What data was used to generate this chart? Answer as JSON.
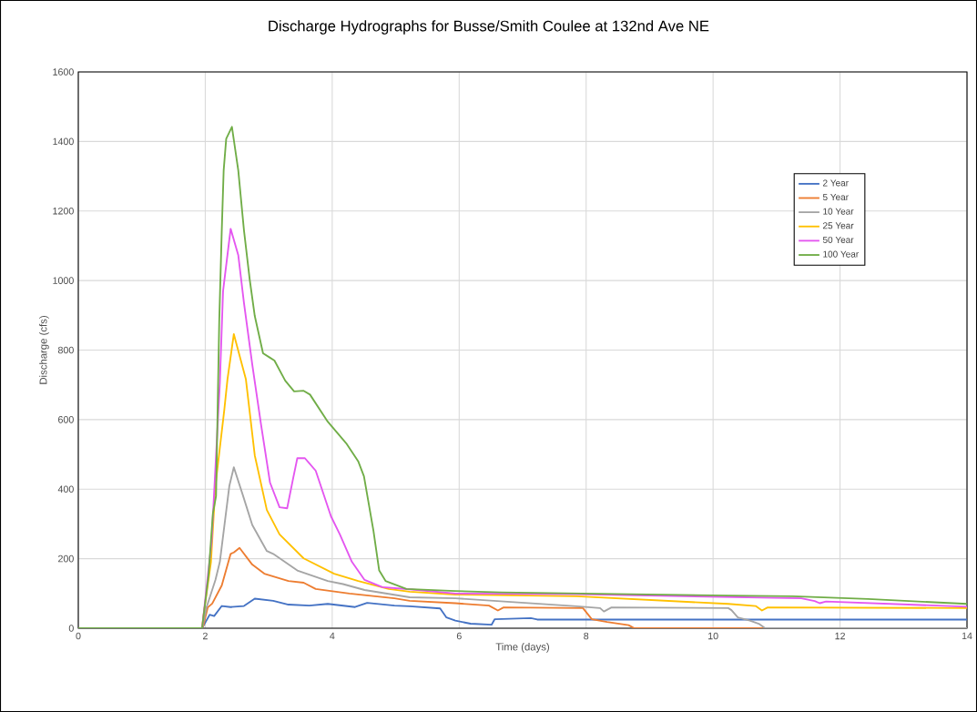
{
  "chart_data": {
    "type": "line",
    "title": "Discharge Hydrographs for Busse/Smith Coulee at 132nd Ave NE",
    "xlabel": "Time (days)",
    "ylabel": "Discharge (cfs)",
    "xlim": [
      0,
      14
    ],
    "ylim": [
      0,
      1600
    ],
    "xticks": [
      0,
      2,
      4,
      6,
      8,
      10,
      12,
      14
    ],
    "yticks": [
      0,
      200,
      400,
      600,
      800,
      1000,
      1200,
      1400,
      1600
    ],
    "grid": true,
    "legend": "top right",
    "series": [
      {
        "name": "2 Year",
        "color": "#4472c4",
        "x": [
          0,
          1.95,
          2.07,
          2.14,
          2.26,
          2.4,
          2.61,
          2.78,
          3.07,
          3.31,
          3.64,
          3.93,
          4.36,
          4.55,
          4.98,
          5.22,
          5.7,
          5.8,
          5.94,
          6.18,
          6.51,
          6.56,
          7.13,
          7.23,
          14
        ],
        "values": [
          0,
          0,
          39,
          35,
          64,
          61,
          64,
          85,
          79,
          68,
          65,
          70,
          61,
          73,
          65,
          63,
          57,
          31,
          22,
          13,
          10,
          26,
          29,
          25,
          25
        ]
      },
      {
        "name": "5 Year",
        "color": "#ed7d31",
        "x": [
          0,
          1.95,
          1.97,
          2.04,
          2.11,
          2.26,
          2.4,
          2.45,
          2.54,
          2.74,
          2.93,
          3.31,
          3.55,
          3.74,
          4.27,
          4.98,
          5.22,
          5.94,
          6.47,
          6.61,
          6.7,
          7.95,
          8.09,
          8.33,
          8.67,
          8.76,
          14
        ],
        "values": [
          0,
          0,
          8,
          60,
          71,
          123,
          214,
          218,
          231,
          183,
          157,
          136,
          131,
          113,
          100,
          86,
          79,
          72,
          65,
          51,
          60,
          58,
          26,
          18,
          9,
          0,
          0
        ]
      },
      {
        "name": "10 Year",
        "color": "#a5a5a5",
        "x": [
          0,
          1.95,
          2.02,
          2.16,
          2.23,
          2.38,
          2.45,
          2.59,
          2.74,
          2.97,
          3.07,
          3.45,
          3.93,
          4.17,
          4.51,
          5.22,
          5.94,
          7.85,
          8.22,
          8.28,
          8.4,
          10.24,
          10.29,
          10.39,
          10.58,
          10.72,
          10.82,
          14
        ],
        "values": [
          0,
          0,
          60,
          139,
          191,
          410,
          463,
          384,
          297,
          222,
          214,
          166,
          136,
          127,
          110,
          89,
          86,
          63,
          58,
          48,
          60,
          58,
          52,
          31,
          22,
          13,
          0,
          0
        ]
      },
      {
        "name": "25 Year",
        "color": "#ffc000",
        "x": [
          0,
          1.95,
          1.97,
          2.09,
          2.16,
          2.3,
          2.35,
          2.45,
          2.64,
          2.78,
          2.97,
          3.17,
          3.55,
          4.03,
          4.41,
          4.89,
          5.22,
          5.94,
          7.85,
          10.24,
          10.67,
          10.77,
          10.86,
          14
        ],
        "values": [
          0,
          0,
          34,
          191,
          410,
          628,
          716,
          846,
          716,
          497,
          340,
          270,
          201,
          157,
          136,
          113,
          105,
          97,
          92,
          70,
          64,
          51,
          60,
          58
        ]
      },
      {
        "name": "50 Year",
        "color": "#e456f0",
        "x": [
          0,
          1.95,
          2.1,
          2.23,
          2.28,
          2.4,
          2.52,
          2.61,
          2.74,
          2.88,
          3.02,
          3.17,
          3.29,
          3.38,
          3.45,
          3.57,
          3.74,
          3.98,
          4.12,
          4.31,
          4.51,
          4.79,
          5.22,
          5.94,
          7.85,
          11.39,
          11.6,
          11.68,
          11.78,
          14
        ],
        "values": [
          0,
          0,
          250,
          707,
          969,
          1149,
          1073,
          935,
          759,
          584,
          419,
          348,
          345,
          427,
          489,
          489,
          453,
          322,
          270,
          191,
          139,
          118,
          112,
          100,
          98,
          86,
          78,
          72,
          77,
          62
        ]
      },
      {
        "name": "100 Year",
        "color": "#70ad47",
        "x": [
          0,
          1.95,
          2.05,
          2.12,
          2.17,
          2.22,
          2.26,
          2.29,
          2.33,
          2.42,
          2.52,
          2.61,
          2.7,
          2.78,
          2.91,
          3.02,
          3.09,
          3.26,
          3.4,
          3.55,
          3.65,
          3.93,
          4.22,
          4.41,
          4.5,
          4.65,
          4.74,
          4.84,
          5.17,
          5.94,
          6.66,
          10.24,
          11.25,
          12.44,
          14
        ],
        "values": [
          0,
          0,
          150,
          330,
          380,
          882,
          1144,
          1317,
          1408,
          1442,
          1317,
          1144,
          1003,
          898,
          791,
          778,
          770,
          712,
          681,
          683,
          672,
          594,
          532,
          480,
          437,
          280,
          166,
          136,
          113,
          107,
          103,
          94,
          92,
          84,
          70
        ]
      }
    ]
  }
}
